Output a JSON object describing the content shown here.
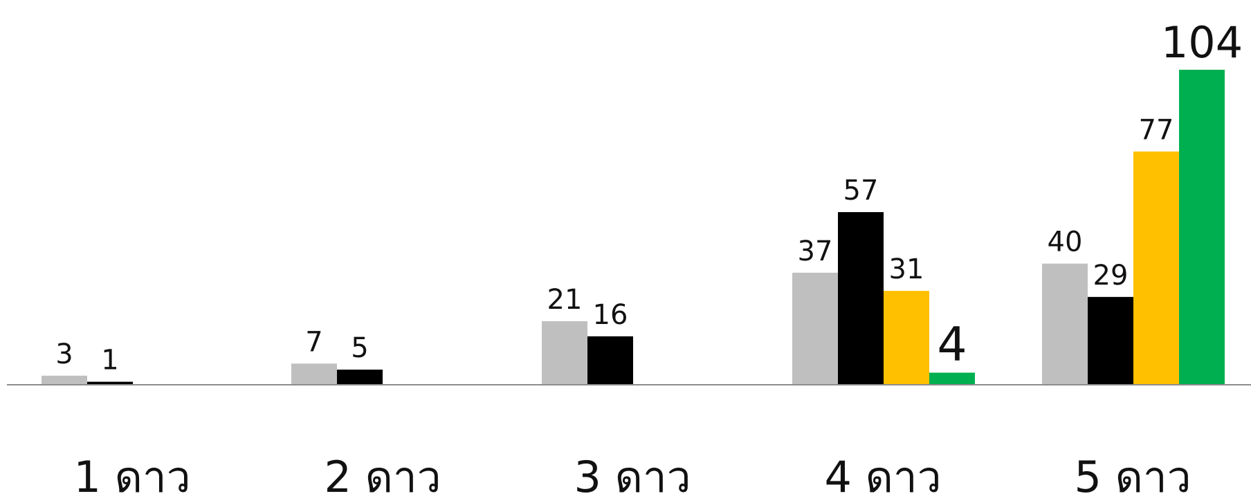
{
  "chart_data": {
    "type": "bar",
    "title": "",
    "xlabel": "",
    "ylabel": "",
    "categories": [
      "1 ดาว",
      "2 ดาว",
      "3 ดาว",
      "4 ดาว",
      "5 ดาว"
    ],
    "ylim": [
      0,
      110
    ],
    "grid": false,
    "legend": "none",
    "series": [
      {
        "color": "#bfbfbf",
        "values": [
          3,
          7,
          21,
          37,
          40
        ]
      },
      {
        "color": "#000000",
        "values": [
          1,
          5,
          16,
          57,
          29
        ]
      },
      {
        "color": "#ffc000",
        "values": [
          null,
          null,
          null,
          31,
          77
        ]
      },
      {
        "color": "#00b050",
        "values": [
          null,
          null,
          null,
          4,
          104
        ]
      }
    ],
    "data_labels": [
      [
        "3",
        "7",
        "21",
        "37",
        "40"
      ],
      [
        "1",
        "5",
        "16",
        "57",
        "29"
      ],
      [
        null,
        null,
        null,
        "31",
        "77"
      ],
      [
        null,
        null,
        null,
        "4",
        "104"
      ]
    ]
  }
}
